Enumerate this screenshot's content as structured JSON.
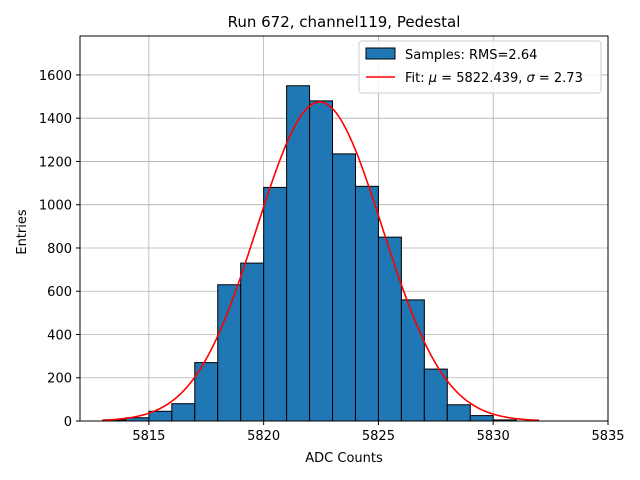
{
  "chart_data": {
    "type": "bar",
    "title": "Run 672, channel119, Pedestal",
    "xlabel": "ADC Counts",
    "ylabel": "Entries",
    "xlim": [
      5812,
      5835
    ],
    "ylim": [
      0,
      1780
    ],
    "xticks": [
      5815,
      5820,
      5825,
      5830,
      5835
    ],
    "yticks": [
      0,
      200,
      400,
      600,
      800,
      1000,
      1200,
      1400,
      1600
    ],
    "grid": true,
    "legend_position": "top-right",
    "colors": {
      "bar_fill": "#1f77b4",
      "bar_edge": "#000000",
      "fit_line": "#ff0000",
      "grid": "#b0b0b0"
    },
    "histogram": {
      "name": "Samples",
      "bin_edges": [
        5813,
        5814,
        5815,
        5816,
        5817,
        5818,
        5819,
        5820,
        5821,
        5822,
        5823,
        5824,
        5825,
        5826,
        5827,
        5828,
        5829,
        5830,
        5831,
        5832
      ],
      "counts": [
        5,
        15,
        45,
        80,
        270,
        630,
        730,
        1080,
        1550,
        1480,
        1235,
        1085,
        850,
        560,
        240,
        75,
        25,
        5,
        0
      ]
    },
    "fit": {
      "name": "Fit",
      "model": "gaussian",
      "mu": 5822.439,
      "sigma": 2.73,
      "peak": 1475,
      "x_range": [
        5813,
        5832
      ]
    },
    "legend": {
      "samples_label": "Samples: RMS=2.64",
      "fit_prefix": "Fit: ",
      "fit_mu_symbol": "μ",
      "fit_mu_text": " = 5822.439, ",
      "fit_sigma_symbol": "σ",
      "fit_sigma_text": " = 2.73"
    }
  }
}
